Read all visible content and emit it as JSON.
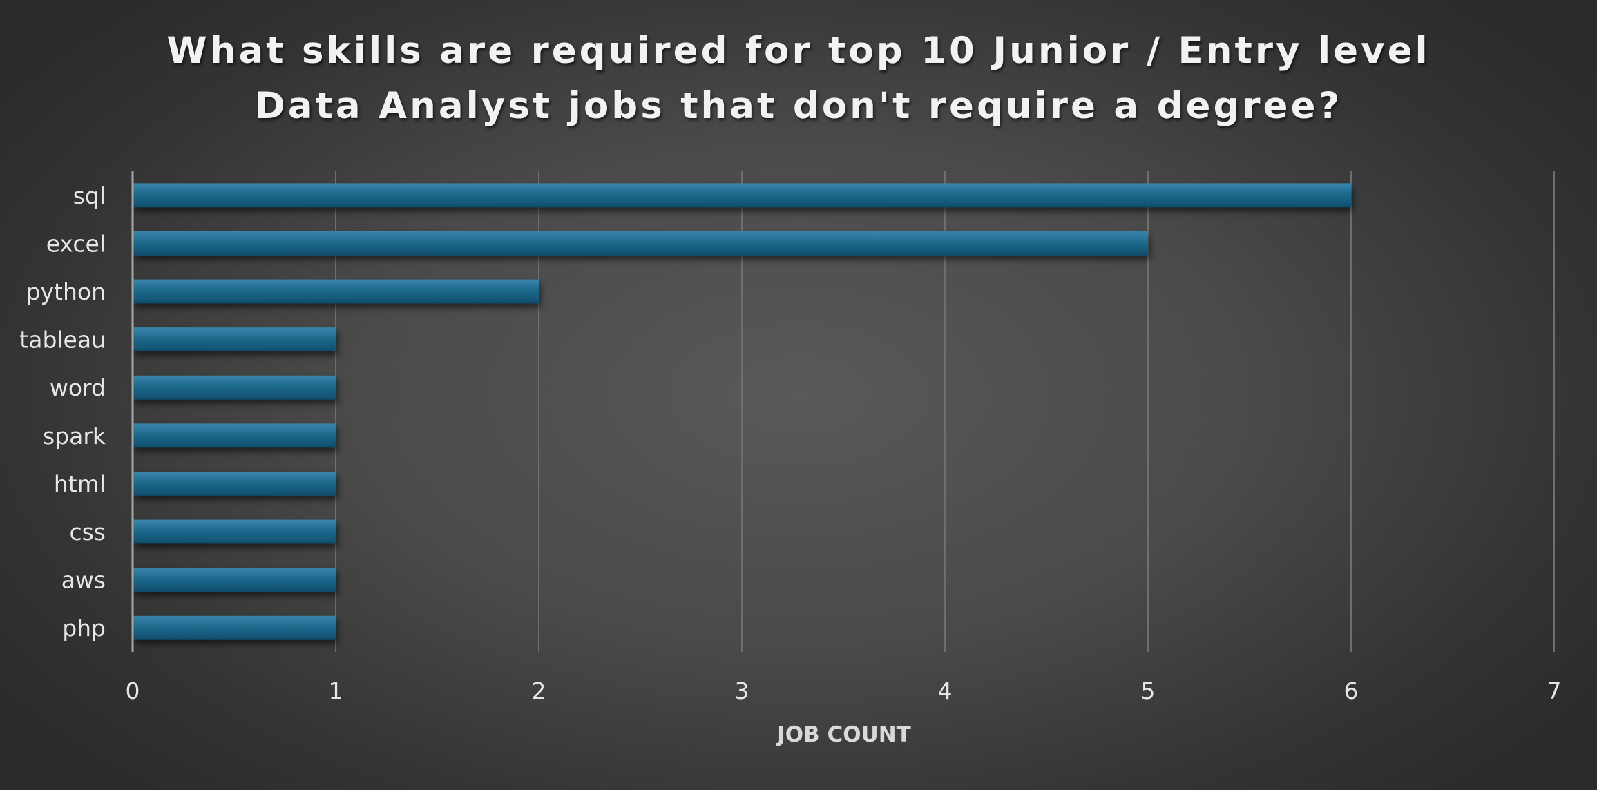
{
  "chart_data": {
    "type": "bar",
    "orientation": "horizontal",
    "title": "What skills are required for top 10 Junior / Entry level Data Analyst jobs that don't require a degree?",
    "categories": [
      "sql",
      "excel",
      "python",
      "tableau",
      "word",
      "spark",
      "html",
      "css",
      "aws",
      "php"
    ],
    "values": [
      6,
      5,
      2,
      1,
      1,
      1,
      1,
      1,
      1,
      1
    ],
    "xlabel": "JOB COUNT",
    "ylabel": "",
    "xlim": [
      0,
      7
    ],
    "xticks": [
      "0",
      "1",
      "2",
      "3",
      "4",
      "5",
      "6",
      "7"
    ],
    "grid": "vertical",
    "legend": "none"
  },
  "colors": {
    "bar": "#1d6a8e",
    "bar_highlight": "#3a86aa",
    "bar_shade": "#0f4d6c",
    "gridline": "#6e6e6e",
    "axis_line": "#a6a6a6",
    "text": "#e6e6e6"
  }
}
